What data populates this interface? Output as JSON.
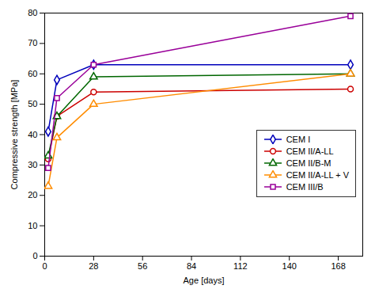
{
  "chart_data": {
    "type": "line",
    "x": [
      2,
      7,
      28,
      175
    ],
    "series": [
      {
        "name": "CEM I",
        "color": "#0000BB",
        "marker": "diamond",
        "values": [
          41,
          58,
          63,
          63
        ]
      },
      {
        "name": "CEM II/A-LL",
        "color": "#CC0000",
        "marker": "circle",
        "values": [
          32,
          46,
          54,
          55
        ]
      },
      {
        "name": "CEM II/B-M",
        "color": "#006600",
        "marker": "triangle",
        "values": [
          33,
          46,
          59,
          60
        ]
      },
      {
        "name": "CEM II/A-LL + V",
        "color": "#FF8C00",
        "marker": "triangle",
        "values": [
          23,
          39,
          50,
          60
        ]
      },
      {
        "name": "CEM III/B",
        "color": "#990099",
        "marker": "square",
        "values": [
          29,
          52,
          63,
          79
        ]
      }
    ],
    "xlabel": "Age [days]",
    "ylabel": "Compressive strength [MPa]",
    "xlim": [
      0,
      182
    ],
    "ylim": [
      0,
      80
    ],
    "xticks": [
      0,
      28,
      56,
      84,
      112,
      140,
      168
    ],
    "yticks": [
      0,
      10,
      20,
      30,
      40,
      50,
      60,
      70,
      80
    ],
    "legend": "right",
    "grid": false
  }
}
